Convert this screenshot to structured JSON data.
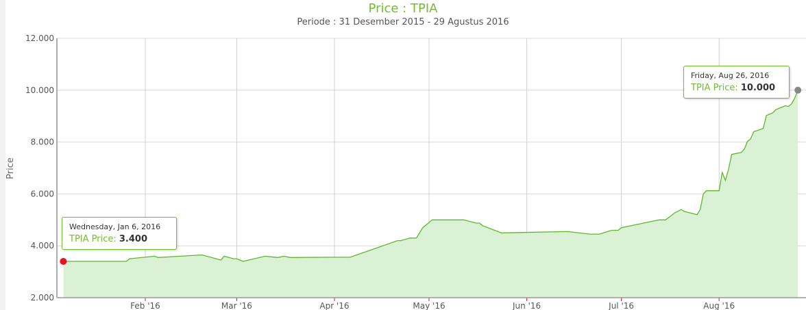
{
  "chart_data": {
    "type": "area",
    "title": "Price : TPIA",
    "subtitle": "Periode : 31 Desember 2015 - 29 Agustus 2016",
    "xlabel": "",
    "ylabel": "Price",
    "ylim": [
      2000,
      12000
    ],
    "yticks": [
      2000,
      4000,
      6000,
      8000,
      10000,
      12000
    ],
    "ytick_labels": [
      "2.000",
      "4.000",
      "6.000",
      "8.000",
      "10.000",
      "12.000"
    ],
    "xticks": [
      "2016-02-01",
      "2016-03-01",
      "2016-04-01",
      "2016-05-01",
      "2016-06-01",
      "2016-07-01",
      "2016-08-01"
    ],
    "xtick_labels": [
      "Feb '16",
      "Mar '16",
      "Apr '16",
      "May '16",
      "Jun '16",
      "Jul '16",
      "Aug '16"
    ],
    "grid": true,
    "line_color": "#5cb82a",
    "fill_color": "#dbf1d5",
    "series": [
      {
        "name": "TPIA Price",
        "points": [
          [
            "2016-01-06",
            3400
          ],
          [
            "2016-01-26",
            3400
          ],
          [
            "2016-01-27",
            3500
          ],
          [
            "2016-02-04",
            3600
          ],
          [
            "2016-02-05",
            3550
          ],
          [
            "2016-02-19",
            3650
          ],
          [
            "2016-02-25",
            3450
          ],
          [
            "2016-02-26",
            3600
          ],
          [
            "2016-02-29",
            3500
          ],
          [
            "2016-03-01",
            3500
          ],
          [
            "2016-03-03",
            3400
          ],
          [
            "2016-03-10",
            3600
          ],
          [
            "2016-03-14",
            3550
          ],
          [
            "2016-03-16",
            3600
          ],
          [
            "2016-03-18",
            3550
          ],
          [
            "2016-03-31",
            3560
          ],
          [
            "2016-04-06",
            3560
          ],
          [
            "2016-04-21",
            4200
          ],
          [
            "2016-04-22",
            4200
          ],
          [
            "2016-04-25",
            4300
          ],
          [
            "2016-04-27",
            4300
          ],
          [
            "2016-04-29",
            4700
          ],
          [
            "2016-05-02",
            5000
          ],
          [
            "2016-05-12",
            5000
          ],
          [
            "2016-05-16",
            4875
          ],
          [
            "2016-05-17",
            4875
          ],
          [
            "2016-05-18",
            4775
          ],
          [
            "2016-05-24",
            4500
          ],
          [
            "2016-06-14",
            4550
          ],
          [
            "2016-06-21",
            4450
          ],
          [
            "2016-06-24",
            4450
          ],
          [
            "2016-06-28",
            4600
          ],
          [
            "2016-06-30",
            4600
          ],
          [
            "2016-07-01",
            4700
          ],
          [
            "2016-07-13",
            5000
          ],
          [
            "2016-07-15",
            5000
          ],
          [
            "2016-07-18",
            5275
          ],
          [
            "2016-07-20",
            5400
          ],
          [
            "2016-07-21",
            5325
          ],
          [
            "2016-07-25",
            5200
          ],
          [
            "2016-07-26",
            5400
          ],
          [
            "2016-07-27",
            6000
          ],
          [
            "2016-07-28",
            6125
          ],
          [
            "2016-08-01",
            6125
          ],
          [
            "2016-08-02",
            6825
          ],
          [
            "2016-08-03",
            6525
          ],
          [
            "2016-08-04",
            6950
          ],
          [
            "2016-08-05",
            7525
          ],
          [
            "2016-08-08",
            7600
          ],
          [
            "2016-08-09",
            7725
          ],
          [
            "2016-08-10",
            8025
          ],
          [
            "2016-08-11",
            8125
          ],
          [
            "2016-08-12",
            8400
          ],
          [
            "2016-08-15",
            8525
          ],
          [
            "2016-08-16",
            9025
          ],
          [
            "2016-08-18",
            9125
          ],
          [
            "2016-08-19",
            9250
          ],
          [
            "2016-08-22",
            9400
          ],
          [
            "2016-08-23",
            9375
          ],
          [
            "2016-08-24",
            9475
          ],
          [
            "2016-08-25",
            9700
          ],
          [
            "2016-08-26",
            10000
          ]
        ]
      }
    ],
    "tooltips": [
      {
        "date_label": "Wednesday, Jan 6, 2016",
        "series_label": "TPIA Price",
        "value_label": "3.400",
        "marker_color": "#e8141c"
      },
      {
        "date_label": "Friday, Aug 26, 2016",
        "series_label": "TPIA Price",
        "value_label": "10.000",
        "marker_color": "#888888"
      }
    ]
  }
}
